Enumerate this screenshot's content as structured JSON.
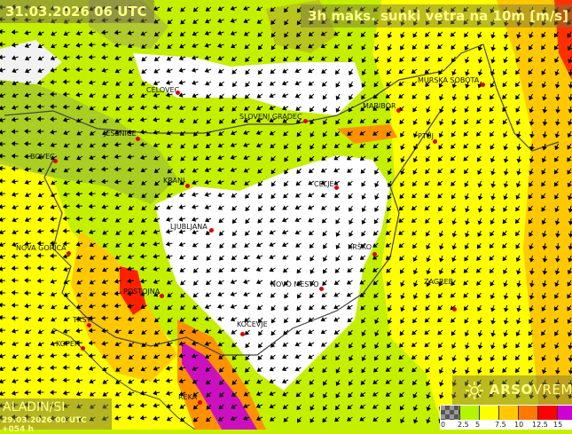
{
  "header": {
    "valid_time": "31.03.2026 06 UTC",
    "parameter": "3h maks. sunki vetra na 10m [m/s]"
  },
  "footer": {
    "model": "ALADIN/SI",
    "run": "29.03.2026 00 UTC +054 h",
    "brand_bold": "ARSO",
    "brand_light": "VREME",
    "brand_icon": "sun-wind-logo-icon"
  },
  "legend": {
    "unit": "m/s",
    "colors": [
      "#777777",
      "#b4f500",
      "#ffff00",
      "#ffc800",
      "#ff7800",
      "#ff0000",
      "#d000d0"
    ],
    "labels": [
      "0",
      "2.5",
      "5",
      "7.5",
      "10",
      "12.5",
      "15"
    ]
  },
  "cities": [
    {
      "name": "CELOVEC"
    },
    {
      "name": "SLOVENJ GRADEC"
    },
    {
      "name": "MARIBOR"
    },
    {
      "name": "MURSKA SOBOTA"
    },
    {
      "name": "PTUJ"
    },
    {
      "name": "JESENICE"
    },
    {
      "name": "BOVEC"
    },
    {
      "name": "KRANJ"
    },
    {
      "name": "CELJE"
    },
    {
      "name": "LJUBLJANA"
    },
    {
      "name": "NOVA GORICA"
    },
    {
      "name": "KRŠKO"
    },
    {
      "name": "POSTOJNA"
    },
    {
      "name": "NOVO MESTO"
    },
    {
      "name": "ZAGREB"
    },
    {
      "name": "TRST"
    },
    {
      "name": "KOČEVJE"
    },
    {
      "name": "KOPER"
    },
    {
      "name": "REKA"
    }
  ]
}
